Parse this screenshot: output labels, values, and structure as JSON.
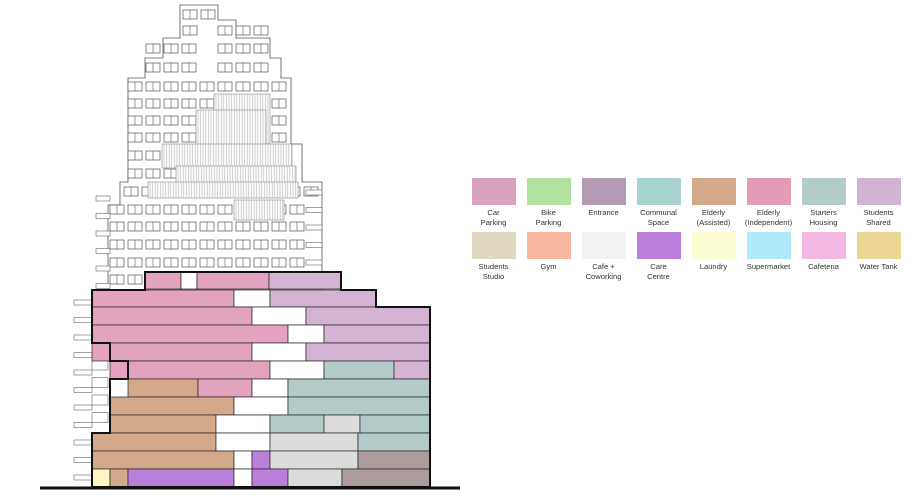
{
  "legend": [
    {
      "label": "Car\nParking",
      "color": "#d9a3bd"
    },
    {
      "label": "Bike\nParking",
      "color": "#b0e3a0"
    },
    {
      "label": "Entrance",
      "color": "#b39bb6"
    },
    {
      "label": "Communal\nSpace",
      "color": "#a8d3d0"
    },
    {
      "label": "Elderly\n(Assisted)",
      "color": "#d4a98a"
    },
    {
      "label": "Elderly\n(Independent)",
      "color": "#e39bb8"
    },
    {
      "label": "Starters\nHousing",
      "color": "#b5cbc9"
    },
    {
      "label": "Students\nShared",
      "color": "#d1b2d0"
    },
    {
      "label": "Students\nStudio",
      "color": "#e0d8c0"
    },
    {
      "label": "Gym",
      "color": "#f8b8a0"
    },
    {
      "label": "Cafe +\nCoworking",
      "color": "#f1f1f1"
    },
    {
      "label": "Care\nCentre",
      "color": "#bc7edb"
    },
    {
      "label": "Laundry",
      "color": "#fdfdd2"
    },
    {
      "label": "Supermarket",
      "color": "#aeeafb"
    },
    {
      "label": "Cafeteria",
      "color": "#f2b8e1"
    },
    {
      "label": "Water Tank",
      "color": "#ecd694"
    }
  ],
  "zone_colors": {
    "elderly_independent": "#e3a3bf",
    "students_shared": "#d4b4d3",
    "elderly_assisted": "#d4a98a",
    "starters_housing": "#b5cbc9",
    "cafe_coworking": "#dcdcdc",
    "care_centre": "#bc7edb",
    "laundry": "#fdf7c0",
    "dark_taupe": "#ad9c9c",
    "void": "#ffffff"
  }
}
